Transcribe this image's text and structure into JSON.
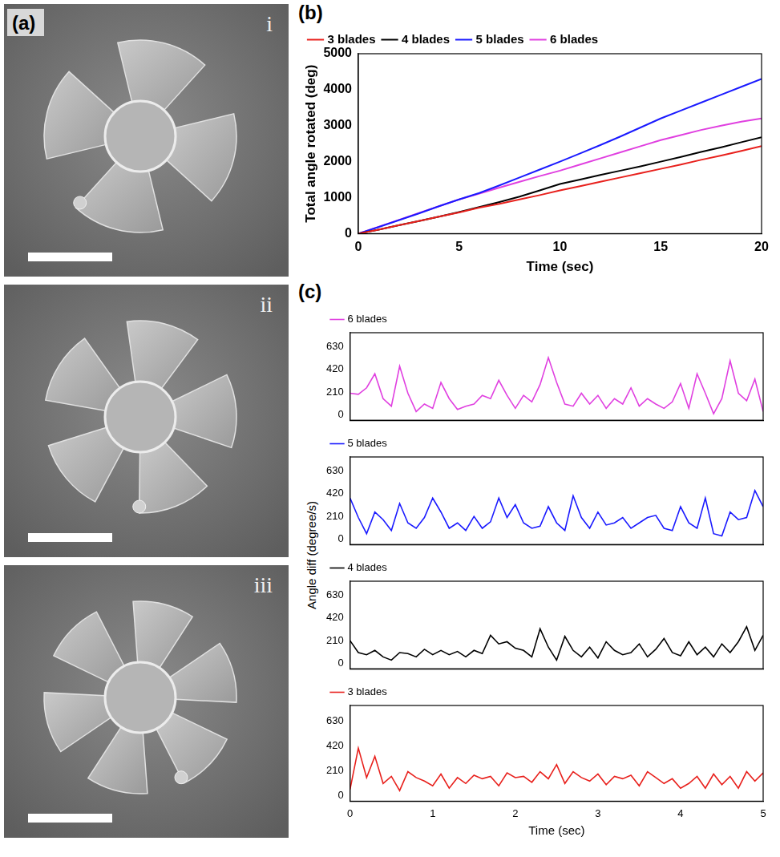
{
  "panels": [
    "(a)",
    "(b)",
    "(c)"
  ],
  "images": [
    "i",
    "ii",
    "iii"
  ],
  "shared_y_label": "Angle diff (degree/s)",
  "chart_data": [
    {
      "type": "line",
      "x_label": "Time (sec)",
      "y_label": "Total angle rotated (deg)",
      "x": [
        0,
        1,
        2,
        3,
        4,
        5,
        6,
        7,
        8,
        9,
        10,
        11,
        12,
        13,
        14,
        15,
        16,
        17,
        18,
        19,
        20
      ],
      "series": [
        {
          "name": "3 blades",
          "color": "#e8201c",
          "values": [
            0,
            110,
            230,
            350,
            470,
            590,
            720,
            830,
            950,
            1070,
            1200,
            1320,
            1440,
            1560,
            1680,
            1800,
            1920,
            2050,
            2170,
            2300,
            2430
          ]
        },
        {
          "name": "4 blades",
          "color": "#000000",
          "values": [
            0,
            110,
            230,
            350,
            470,
            600,
            740,
            880,
            1030,
            1200,
            1380,
            1500,
            1630,
            1750,
            1870,
            2000,
            2130,
            2270,
            2400,
            2540,
            2680
          ]
        },
        {
          "name": "5 blades",
          "color": "#1a1aff",
          "values": [
            0,
            180,
            370,
            560,
            760,
            950,
            1130,
            1340,
            1560,
            1780,
            2000,
            2230,
            2460,
            2700,
            2950,
            3200,
            3420,
            3640,
            3860,
            4080,
            4300
          ]
        },
        {
          "name": "6 blades",
          "color": "#e040e0",
          "values": [
            0,
            190,
            380,
            570,
            760,
            950,
            1110,
            1280,
            1440,
            1600,
            1750,
            1920,
            2090,
            2260,
            2430,
            2600,
            2740,
            2880,
            3000,
            3110,
            3200
          ]
        }
      ],
      "xlim": [
        0,
        20
      ],
      "xticks": [
        0,
        5,
        10,
        15,
        20
      ],
      "ylim": [
        0,
        5000
      ],
      "yticks": [
        0,
        1000,
        2000,
        3000,
        4000,
        5000
      ],
      "grid": false,
      "legend": "top-left"
    },
    {
      "type": "line",
      "tick_labels": "y",
      "x": [
        0,
        0.1,
        0.2,
        0.3,
        0.4,
        0.5,
        0.6,
        0.7,
        0.8,
        0.9,
        1,
        1.1,
        1.2,
        1.3,
        1.4,
        1.5,
        1.6,
        1.7,
        1.8,
        1.9,
        2,
        2.1,
        2.2,
        2.3,
        2.4,
        2.5,
        2.6,
        2.7,
        2.8,
        2.9,
        3,
        3.1,
        3.2,
        3.3,
        3.4,
        3.5,
        3.6,
        3.7,
        3.8,
        3.9,
        4,
        4.1,
        4.2,
        4.3,
        4.4,
        4.5,
        4.6,
        4.7,
        4.8,
        4.9,
        5
      ],
      "series": [
        {
          "name": "6 blades",
          "color": "#e040e0",
          "values": [
            200,
            190,
            250,
            380,
            150,
            80,
            450,
            200,
            30,
            100,
            60,
            300,
            150,
            50,
            80,
            100,
            180,
            150,
            320,
            180,
            60,
            180,
            120,
            280,
            530,
            300,
            100,
            80,
            200,
            100,
            180,
            60,
            150,
            100,
            250,
            80,
            150,
            100,
            60,
            120,
            290,
            60,
            380,
            200,
            10,
            150,
            500,
            200,
            130,
            330,
            30
          ]
        }
      ],
      "xlim": [
        0,
        5
      ],
      "xticks": [
        0,
        1,
        2,
        3,
        4,
        5
      ],
      "ylim": [
        -50,
        760
      ],
      "yticks": [
        0,
        210,
        420,
        630
      ],
      "grid": false,
      "legend": "top-left"
    },
    {
      "type": "line",
      "tick_labels": "y",
      "x": [
        0,
        0.1,
        0.2,
        0.3,
        0.4,
        0.5,
        0.6,
        0.7,
        0.8,
        0.9,
        1,
        1.1,
        1.2,
        1.3,
        1.4,
        1.5,
        1.6,
        1.7,
        1.8,
        1.9,
        2,
        2.1,
        2.2,
        2.3,
        2.4,
        2.5,
        2.6,
        2.7,
        2.8,
        2.9,
        3,
        3.1,
        3.2,
        3.3,
        3.4,
        3.5,
        3.6,
        3.7,
        3.8,
        3.9,
        4,
        4.1,
        4.2,
        4.3,
        4.4,
        4.5,
        4.6,
        4.7,
        4.8,
        4.9,
        5
      ],
      "series": [
        {
          "name": "5 blades",
          "color": "#1a1aff",
          "values": [
            380,
            200,
            50,
            250,
            180,
            80,
            330,
            150,
            100,
            200,
            380,
            250,
            100,
            150,
            80,
            210,
            100,
            160,
            380,
            200,
            320,
            150,
            100,
            120,
            300,
            150,
            80,
            400,
            200,
            100,
            250,
            130,
            150,
            200,
            100,
            150,
            200,
            220,
            100,
            80,
            300,
            150,
            100,
            380,
            50,
            30,
            250,
            180,
            200,
            450,
            300
          ]
        }
      ],
      "xlim": [
        0,
        5
      ],
      "xticks": [
        0,
        1,
        2,
        3,
        4,
        5
      ],
      "ylim": [
        -50,
        760
      ],
      "yticks": [
        0,
        210,
        420,
        630
      ],
      "grid": false,
      "legend": "top-left"
    },
    {
      "type": "line",
      "tick_labels": "y",
      "x": [
        0,
        0.1,
        0.2,
        0.3,
        0.4,
        0.5,
        0.6,
        0.7,
        0.8,
        0.9,
        1,
        1.1,
        1.2,
        1.3,
        1.4,
        1.5,
        1.6,
        1.7,
        1.8,
        1.9,
        2,
        2.1,
        2.2,
        2.3,
        2.4,
        2.5,
        2.6,
        2.7,
        2.8,
        2.9,
        3,
        3.1,
        3.2,
        3.3,
        3.4,
        3.5,
        3.6,
        3.7,
        3.8,
        3.9,
        4,
        4.1,
        4.2,
        4.3,
        4.4,
        4.5,
        4.6,
        4.7,
        4.8,
        4.9,
        5
      ],
      "series": [
        {
          "name": "4 blades",
          "color": "#000000",
          "values": [
            210,
            100,
            80,
            120,
            60,
            30,
            100,
            90,
            60,
            130,
            80,
            120,
            80,
            110,
            60,
            120,
            90,
            260,
            180,
            200,
            140,
            120,
            60,
            320,
            150,
            30,
            250,
            120,
            60,
            150,
            50,
            200,
            120,
            80,
            100,
            180,
            60,
            130,
            230,
            100,
            70,
            200,
            80,
            150,
            60,
            180,
            100,
            200,
            340,
            120,
            260
          ]
        }
      ],
      "xlim": [
        0,
        5
      ],
      "xticks": [
        0,
        1,
        2,
        3,
        4,
        5
      ],
      "ylim": [
        -50,
        760
      ],
      "yticks": [
        0,
        210,
        420,
        630
      ],
      "grid": false,
      "legend": "top-left"
    },
    {
      "type": "line",
      "x_label": "Time (sec)",
      "x": [
        0,
        0.1,
        0.2,
        0.3,
        0.4,
        0.5,
        0.6,
        0.7,
        0.8,
        0.9,
        1,
        1.1,
        1.2,
        1.3,
        1.4,
        1.5,
        1.6,
        1.7,
        1.8,
        1.9,
        2,
        2.1,
        2.2,
        2.3,
        2.4,
        2.5,
        2.6,
        2.7,
        2.8,
        2.9,
        3,
        3.1,
        3.2,
        3.3,
        3.4,
        3.5,
        3.6,
        3.7,
        3.8,
        3.9,
        4,
        4.1,
        4.2,
        4.3,
        4.4,
        4.5,
        4.6,
        4.7,
        4.8,
        4.9,
        5
      ],
      "series": [
        {
          "name": "3 blades",
          "color": "#e8201c",
          "values": [
            50,
            400,
            150,
            330,
            100,
            160,
            40,
            200,
            150,
            120,
            80,
            180,
            60,
            150,
            100,
            170,
            140,
            160,
            80,
            190,
            150,
            160,
            110,
            200,
            140,
            260,
            100,
            200,
            150,
            120,
            180,
            90,
            160,
            140,
            170,
            80,
            200,
            150,
            100,
            140,
            60,
            100,
            160,
            60,
            180,
            90,
            160,
            60,
            200,
            120,
            190
          ]
        }
      ],
      "xlim": [
        0,
        5
      ],
      "xticks": [
        0,
        1,
        2,
        3,
        4,
        5
      ],
      "ylim": [
        -50,
        760
      ],
      "yticks": [
        0,
        210,
        420,
        630
      ],
      "grid": false,
      "legend": "top-left"
    }
  ]
}
